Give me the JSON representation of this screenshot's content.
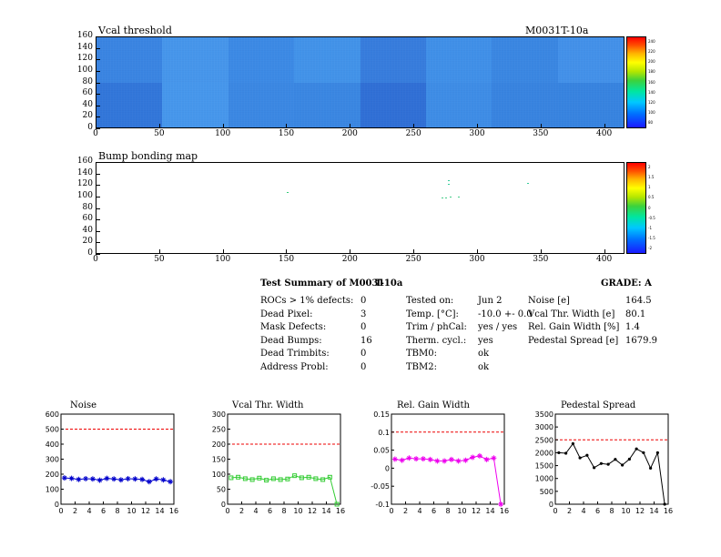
{
  "vcal_map": {
    "title": "Vcal threshold",
    "module_label": "M0031T-10a",
    "x_ticks": [
      "0",
      "50",
      "100",
      "150",
      "200",
      "250",
      "300",
      "350",
      "400"
    ],
    "y_ticks": [
      "0",
      "20",
      "40",
      "60",
      "80",
      "100",
      "120",
      "140",
      "160"
    ],
    "palette_ticks": [
      "80",
      "100",
      "120",
      "140",
      "160",
      "180",
      "200",
      "220",
      "240"
    ]
  },
  "bump_map": {
    "title": "Bump bonding map",
    "x_ticks": [
      "0",
      "50",
      "100",
      "150",
      "200",
      "250",
      "300",
      "350",
      "400"
    ],
    "y_ticks": [
      "0",
      "20",
      "40",
      "60",
      "80",
      "100",
      "120",
      "140",
      "160"
    ],
    "palette_ticks": [
      "-2",
      "-1.5",
      "-1",
      "-0.5",
      "0",
      "0.5",
      "1",
      "1.5",
      "2"
    ]
  },
  "summary": {
    "title_a": "Test Summary of M0031",
    "title_b": "T-10a",
    "grade": "GRADE:  A",
    "col1": [
      {
        "label": "ROCs > 1% defects:",
        "value": "0"
      },
      {
        "label": "Dead Pixel:",
        "value": "3"
      },
      {
        "label": "Mask Defects:",
        "value": "0"
      },
      {
        "label": "Dead Bumps:",
        "value": "16"
      },
      {
        "label": "Dead Trimbits:",
        "value": "0"
      },
      {
        "label": "Address Probl:",
        "value": "0"
      }
    ],
    "col2": [
      {
        "label": "Tested on:",
        "value": "Jun 2"
      },
      {
        "label": "Temp. [°C]:",
        "value": "-10.0 +- 0.0"
      },
      {
        "label": "Trim / phCal:",
        "value": "yes / yes"
      },
      {
        "label": "Therm. cycl.:",
        "value": "yes"
      },
      {
        "label": "TBM0:",
        "value": "ok"
      },
      {
        "label": "TBM2:",
        "value": "ok"
      }
    ],
    "col3": [
      {
        "label": "Noise [e]",
        "value": "164.5"
      },
      {
        "label": "Vcal Thr. Width [e]",
        "value": "80.1"
      },
      {
        "label": "Rel. Gain Width [%]",
        "value": "1.4"
      },
      {
        "label": "Pedestal Spread [e]",
        "value": "1679.9"
      }
    ]
  },
  "chart_data": [
    {
      "type": "line",
      "title": "Noise",
      "color": "#0000cc",
      "marker": "star",
      "x": [
        0.5,
        1.5,
        2.5,
        3.5,
        4.5,
        5.5,
        6.5,
        7.5,
        8.5,
        9.5,
        10.5,
        11.5,
        12.5,
        13.5,
        14.5,
        15.5
      ],
      "values": [
        175,
        172,
        165,
        170,
        168,
        160,
        172,
        168,
        162,
        170,
        168,
        165,
        150,
        168,
        162,
        150
      ],
      "ylim": [
        0,
        600
      ],
      "xlim": [
        0,
        16
      ],
      "threshold": 500,
      "y_ticks": [
        "0",
        "100",
        "200",
        "300",
        "400",
        "500",
        "600"
      ],
      "x_ticks": [
        "0",
        "2",
        "4",
        "6",
        "8",
        "10",
        "12",
        "14",
        "16"
      ]
    },
    {
      "type": "line",
      "title": "Vcal Thr. Width",
      "color": "#33cc33",
      "marker": "square",
      "x": [
        0.5,
        1.5,
        2.5,
        3.5,
        4.5,
        5.5,
        6.5,
        7.5,
        8.5,
        9.5,
        10.5,
        11.5,
        12.5,
        13.5,
        14.5,
        15.5
      ],
      "values": [
        88,
        90,
        85,
        82,
        87,
        80,
        85,
        82,
        84,
        95,
        88,
        90,
        85,
        82,
        90,
        0
      ],
      "ylim": [
        0,
        300
      ],
      "xlim": [
        0,
        16
      ],
      "threshold": 200,
      "y_ticks": [
        "0",
        "50",
        "100",
        "150",
        "200",
        "250",
        "300"
      ],
      "x_ticks": [
        "0",
        "2",
        "4",
        "6",
        "8",
        "10",
        "12",
        "14",
        "16"
      ]
    },
    {
      "type": "line",
      "title": "Rel. Gain Width",
      "color": "#ee00ee",
      "marker": "star",
      "x": [
        0.5,
        1.5,
        2.5,
        3.5,
        4.5,
        5.5,
        6.5,
        7.5,
        8.5,
        9.5,
        10.5,
        11.5,
        12.5,
        13.5,
        14.5,
        15.5
      ],
      "values": [
        0.025,
        0.022,
        0.028,
        0.026,
        0.026,
        0.024,
        0.02,
        0.02,
        0.024,
        0.02,
        0.022,
        0.03,
        0.034,
        0.024,
        0.028,
        -0.1
      ],
      "ylim": [
        -0.1,
        0.15
      ],
      "xlim": [
        0,
        16
      ],
      "threshold": 0.1,
      "y_ticks": [
        "-0.1",
        "-0.05",
        "0",
        "0.05",
        "0.1",
        "0.15"
      ],
      "x_ticks": [
        "0",
        "2",
        "4",
        "6",
        "8",
        "10",
        "12",
        "14",
        "16"
      ]
    },
    {
      "type": "line",
      "title": "Pedestal Spread",
      "color": "#000000",
      "marker": "dot",
      "x": [
        0.5,
        1.5,
        2.5,
        3.5,
        4.5,
        5.5,
        6.5,
        7.5,
        8.5,
        9.5,
        10.5,
        11.5,
        12.5,
        13.5,
        14.5,
        15.5
      ],
      "values": [
        2000,
        1980,
        2350,
        1800,
        1900,
        1420,
        1580,
        1550,
        1740,
        1520,
        1750,
        2150,
        2000,
        1400,
        2000,
        0
      ],
      "ylim": [
        0,
        3500
      ],
      "xlim": [
        0,
        16
      ],
      "threshold": 2500,
      "y_ticks": [
        "0",
        "500",
        "1000",
        "1500",
        "2000",
        "2500",
        "3000",
        "3500"
      ],
      "x_ticks": [
        "0",
        "2",
        "4",
        "6",
        "8",
        "10",
        "12",
        "14",
        "16"
      ]
    }
  ]
}
